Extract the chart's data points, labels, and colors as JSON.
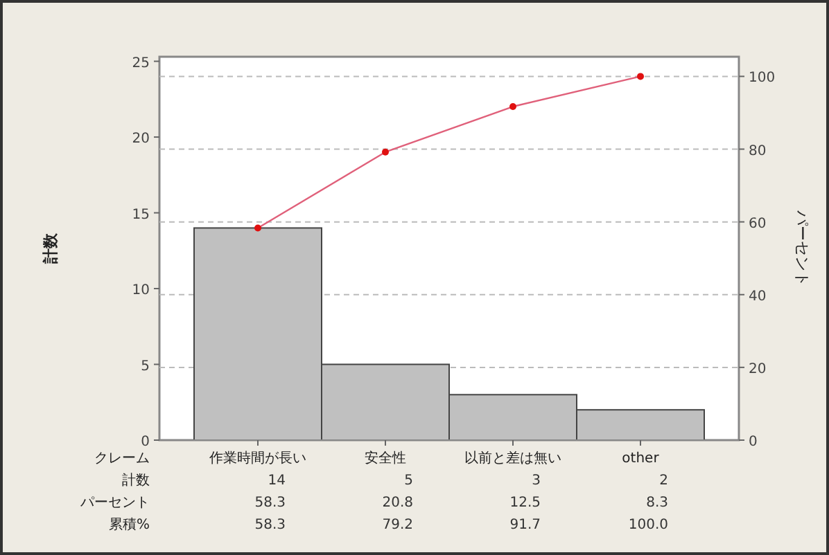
{
  "chart_data": {
    "type": "bar",
    "xlabel": "クレーム",
    "ylabel": "計数",
    "y2label": "パーセント",
    "categories": [
      "作業時間が長い",
      "安全性",
      "以前と差は無い",
      "other"
    ],
    "series": [
      {
        "color": "#c0c0c0",
        "values": [
          14,
          5,
          3,
          2
        ],
        "value_labels": [
          "14",
          "5",
          "3",
          "2"
        ]
      },
      {
        "type": "line",
        "axis": "y2",
        "color": "#e0607a",
        "values": [
          58.3,
          79.2,
          91.7,
          100.0
        ],
        "value_labels": [
          "58.3",
          "79.2",
          "91.7",
          "100.0"
        ],
        "marker": "circle"
      }
    ],
    "annotations": [
      "計数",
      "パーセント",
      "58.3",
      "20.8",
      "12.5",
      "8.3",
      "累積%"
    ],
    "ylim": [
      0,
      25.3
    ],
    "yticks": [
      0,
      5,
      10,
      15,
      20,
      25
    ],
    "y2lim": [
      0,
      105.4
    ],
    "y2ticks": [
      0,
      20,
      40,
      60,
      80,
      100
    ],
    "grid": "y"
  }
}
